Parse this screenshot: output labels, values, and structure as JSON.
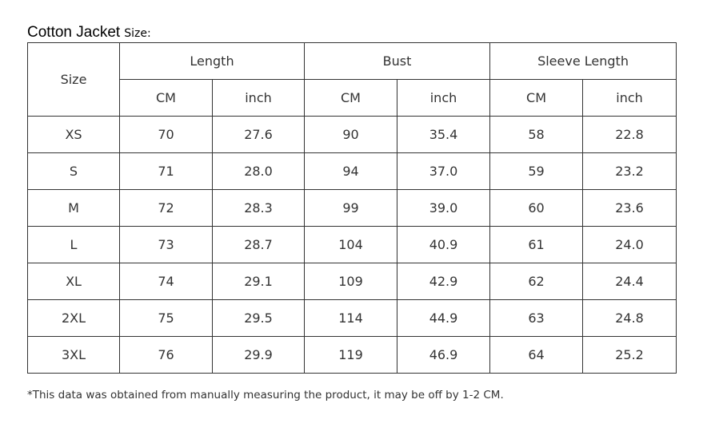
{
  "title": {
    "main": "Cotton Jacket",
    "sub": "Size:"
  },
  "table": {
    "size_header": "Size",
    "groups": [
      "Length",
      "Bust",
      "Sleeve Length"
    ],
    "units": [
      "CM",
      "inch",
      "CM",
      "inch",
      "CM",
      "inch"
    ],
    "rows": [
      [
        "XS",
        "70",
        "27.6",
        "90",
        "35.4",
        "58",
        "22.8"
      ],
      [
        "S",
        "71",
        "28.0",
        "94",
        "37.0",
        "59",
        "23.2"
      ],
      [
        "M",
        "72",
        "28.3",
        "99",
        "39.0",
        "60",
        "23.6"
      ],
      [
        "L",
        "73",
        "28.7",
        "104",
        "40.9",
        "61",
        "24.0"
      ],
      [
        "XL",
        "74",
        "29.1",
        "109",
        "42.9",
        "62",
        "24.4"
      ],
      [
        "2XL",
        "75",
        "29.5",
        "114",
        "44.9",
        "63",
        "24.8"
      ],
      [
        "3XL",
        "76",
        "29.9",
        "119",
        "46.9",
        "64",
        "25.2"
      ]
    ]
  },
  "footnote": "*This data was obtained from manually measuring the product, it may be off by 1-2 CM."
}
